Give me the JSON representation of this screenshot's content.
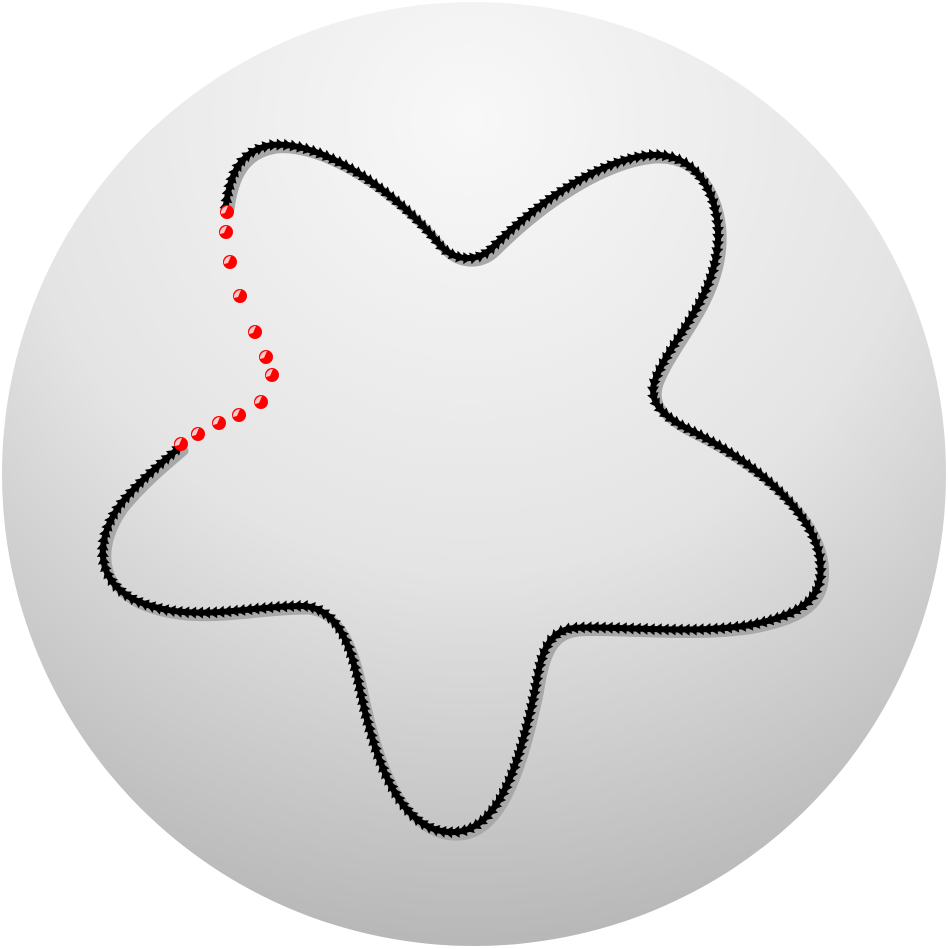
{
  "figure": {
    "kind": "closed curve drawn on a shaded sphere",
    "background_color": "#ffffff",
    "sphere": {
      "highlight_color": "#f8f8f8",
      "mid_color": "#e4e4e4",
      "shadow_color": "#b8b8b8"
    },
    "curve": {
      "shape": "five-lobed star",
      "lobes": 5,
      "marker_style": "triangle",
      "marker_color": "#000000",
      "shadow_color": "#a8a8a8"
    },
    "highlighted_segment": {
      "marker_style": "dot",
      "dot_color": "#ff0000",
      "dot_highlight_color": "#ffc8c8",
      "dot_count": 12
    }
  }
}
